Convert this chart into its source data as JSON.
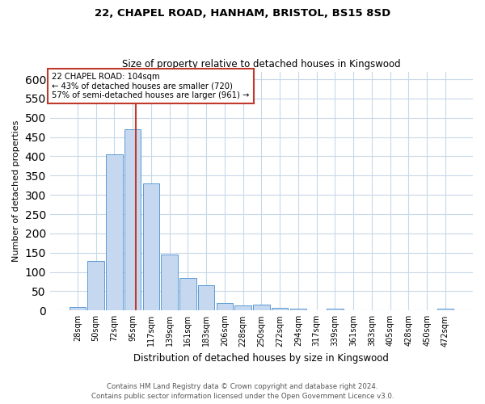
{
  "title1": "22, CHAPEL ROAD, HANHAM, BRISTOL, BS15 8SD",
  "title2": "Size of property relative to detached houses in Kingswood",
  "xlabel": "Distribution of detached houses by size in Kingswood",
  "ylabel": "Number of detached properties",
  "bin_labels": [
    "28sqm",
    "50sqm",
    "72sqm",
    "95sqm",
    "117sqm",
    "139sqm",
    "161sqm",
    "183sqm",
    "206sqm",
    "228sqm",
    "250sqm",
    "272sqm",
    "294sqm",
    "317sqm",
    "339sqm",
    "361sqm",
    "383sqm",
    "405sqm",
    "428sqm",
    "450sqm",
    "472sqm"
  ],
  "bar_values": [
    8,
    128,
    405,
    470,
    330,
    145,
    85,
    65,
    20,
    13,
    16,
    7,
    5,
    0,
    5,
    0,
    0,
    0,
    0,
    0,
    4
  ],
  "bar_color": "#c5d8f0",
  "bar_edge_color": "#5b9bd5",
  "grid_color": "#c8d8e8",
  "property_bin_index": 3,
  "annotation_line1": "22 CHAPEL ROAD: 104sqm",
  "annotation_line2": "← 43% of detached houses are smaller (720)",
  "annotation_line3": "57% of semi-detached houses are larger (961) →",
  "vline_color": "#c0392b",
  "annotation_box_edge": "#c0392b",
  "footer1": "Contains HM Land Registry data © Crown copyright and database right 2024.",
  "footer2": "Contains public sector information licensed under the Open Government Licence v3.0.",
  "ylim": [
    0,
    620
  ],
  "yticks": [
    0,
    50,
    100,
    150,
    200,
    250,
    300,
    350,
    400,
    450,
    500,
    550,
    600
  ]
}
